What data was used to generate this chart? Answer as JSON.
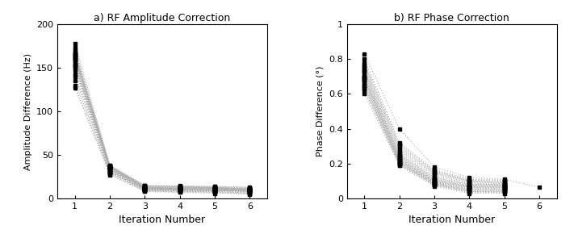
{
  "title_a": "a) RF Amplitude Correction",
  "title_b": "b) RF Phase Correction",
  "xlabel": "Iteration Number",
  "ylabel_a": "Amplitude Difference (Hz)",
  "ylabel_b": "Phase Difference (°)",
  "xlim": [
    0.5,
    6.5
  ],
  "ylim_a": [
    0,
    200
  ],
  "ylim_b": [
    0,
    1.0
  ],
  "xticks": [
    1,
    2,
    3,
    4,
    5,
    6
  ],
  "yticks_a": [
    0,
    50,
    100,
    150,
    200
  ],
  "yticks_b": [
    0,
    0.2,
    0.4,
    0.6,
    0.8,
    1.0
  ],
  "n_waveforms": 25,
  "amp_start_values": [
    127,
    130,
    135,
    140,
    143,
    147,
    150,
    152,
    153,
    155,
    156,
    158,
    159,
    160,
    161,
    162,
    163,
    164,
    165,
    166,
    167,
    168,
    170,
    173,
    178
  ],
  "amp_mid2_values": [
    27,
    28,
    29,
    30,
    30,
    31,
    31,
    32,
    32,
    33,
    33,
    34,
    34,
    35,
    35,
    35,
    36,
    36,
    36,
    37,
    37,
    37,
    37,
    38,
    38
  ],
  "amp_mid3_values": [
    8,
    8.5,
    9,
    9.5,
    9.5,
    10,
    10,
    10.5,
    10.5,
    11,
    11,
    11.5,
    11.5,
    12,
    12,
    12,
    12.5,
    12.5,
    13,
    13,
    13.5,
    14,
    14.5,
    14.5,
    15
  ],
  "amp_mid4_values": [
    7,
    7.5,
    8,
    8.5,
    9,
    9,
    9.5,
    9.5,
    10,
    10,
    10.5,
    10.5,
    11,
    11,
    11.5,
    11.5,
    12,
    12,
    12.5,
    13,
    13,
    13.5,
    13.5,
    14,
    14.5
  ],
  "amp_mid5_values": [
    6,
    7,
    7.5,
    8,
    8.5,
    8.5,
    9,
    9,
    9.5,
    9.5,
    10,
    10,
    10.5,
    11,
    11,
    11,
    11.5,
    12,
    12,
    12,
    12.5,
    12.5,
    13,
    13.5,
    14
  ],
  "amp_end_values": [
    5,
    5.5,
    6,
    6.5,
    7,
    7.5,
    8,
    8,
    8.5,
    8.5,
    9,
    9,
    9.5,
    9.5,
    10,
    10,
    10,
    10.5,
    10.5,
    11,
    11,
    11.5,
    12,
    12.5,
    13
  ],
  "phase_start_values": [
    0.6,
    0.62,
    0.63,
    0.64,
    0.65,
    0.65,
    0.66,
    0.67,
    0.68,
    0.68,
    0.69,
    0.69,
    0.7,
    0.7,
    0.71,
    0.72,
    0.73,
    0.73,
    0.74,
    0.75,
    0.76,
    0.77,
    0.78,
    0.8,
    0.83
  ],
  "phase_mid2_values": [
    0.19,
    0.19,
    0.2,
    0.2,
    0.2,
    0.21,
    0.21,
    0.21,
    0.22,
    0.22,
    0.22,
    0.23,
    0.23,
    0.24,
    0.24,
    0.25,
    0.25,
    0.26,
    0.27,
    0.28,
    0.29,
    0.3,
    0.31,
    0.32,
    0.4
  ],
  "phase_mid3_values": [
    0.07,
    0.075,
    0.08,
    0.08,
    0.085,
    0.085,
    0.09,
    0.09,
    0.095,
    0.095,
    0.1,
    0.1,
    0.105,
    0.11,
    0.11,
    0.12,
    0.12,
    0.13,
    0.14,
    0.145,
    0.15,
    0.155,
    0.16,
    0.165,
    0.18
  ],
  "phase_mid4_values": [
    0.03,
    0.035,
    0.04,
    0.04,
    0.045,
    0.05,
    0.05,
    0.055,
    0.06,
    0.06,
    0.065,
    0.065,
    0.07,
    0.07,
    0.075,
    0.08,
    0.08,
    0.085,
    0.09,
    0.095,
    0.1,
    0.1,
    0.105,
    0.11,
    0.12
  ],
  "phase_mid5_values": [
    0.03,
    0.035,
    0.04,
    0.04,
    0.045,
    0.05,
    0.05,
    0.055,
    0.06,
    0.06,
    0.065,
    0.065,
    0.07,
    0.07,
    0.075,
    0.075,
    0.08,
    0.08,
    0.085,
    0.09,
    0.09,
    0.095,
    0.1,
    0.105,
    0.11
  ],
  "phase_end_values": [
    null,
    null,
    null,
    null,
    null,
    null,
    null,
    null,
    null,
    null,
    null,
    null,
    null,
    null,
    null,
    null,
    null,
    null,
    null,
    null,
    null,
    null,
    null,
    null,
    0.065
  ],
  "line_color": "#aaaaaa",
  "marker_color": "#000000",
  "bg_color": "#ffffff"
}
